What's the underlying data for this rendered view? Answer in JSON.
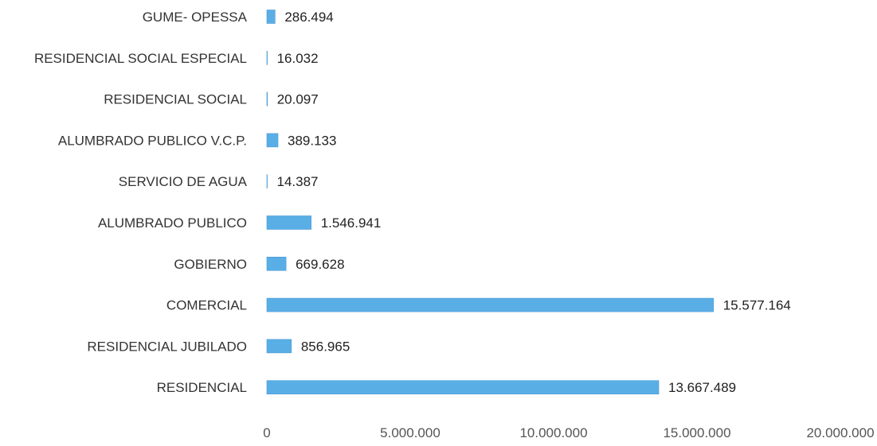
{
  "chart_data": {
    "type": "bar",
    "orientation": "horizontal",
    "categories": [
      "GUME- OPESSA",
      "RESIDENCIAL SOCIAL ESPECIAL",
      "RESIDENCIAL SOCIAL",
      "ALUMBRADO PUBLICO V.C.P.",
      "SERVICIO DE AGUA",
      "ALUMBRADO PUBLICO",
      "GOBIERNO",
      "COMERCIAL",
      "RESIDENCIAL JUBILADO",
      "RESIDENCIAL"
    ],
    "values": [
      286494,
      16032,
      20097,
      389133,
      14387,
      1546941,
      669628,
      15577164,
      856965,
      13667489
    ],
    "value_labels": [
      "286.494",
      "16.032",
      "20.097",
      "389.133",
      "14.387",
      "1.546.941",
      "669.628",
      "15.577.164",
      "856.965",
      "13.667.489"
    ],
    "xlim": [
      0,
      20000000
    ],
    "x_ticks": [
      0,
      5000000,
      10000000,
      15000000,
      20000000
    ],
    "x_tick_labels": [
      "0",
      "5.000.000",
      "10.000.000",
      "15.000.000",
      "20.000.000"
    ],
    "title": "",
    "xlabel": "",
    "ylabel": "",
    "grid": false,
    "legend": "none",
    "bar_color": "#5aaee6"
  }
}
